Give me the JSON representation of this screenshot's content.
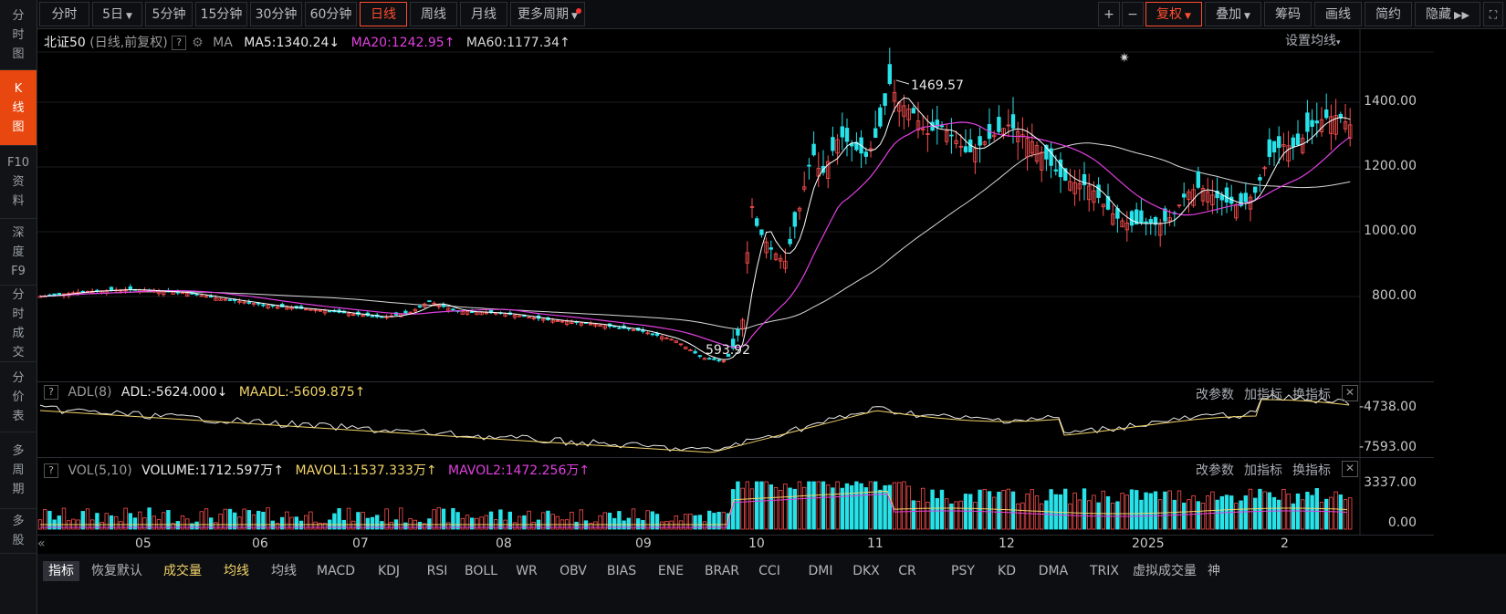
{
  "sidebar": {
    "items": [
      {
        "label": "分\n时\n图",
        "active": false
      },
      {
        "label": "K\n线\n图",
        "active": true
      },
      {
        "label": "F10\n资\n料",
        "active": false
      },
      {
        "label": "深\n度\nF9",
        "active": false
      },
      {
        "label": "分\n时\n成\n交",
        "active": false
      },
      {
        "label": "分\n价\n表",
        "active": false
      },
      {
        "label": "多\n周\n期",
        "active": false
      },
      {
        "label": "多\n股",
        "active": false
      }
    ]
  },
  "toolbar": {
    "periods": [
      "分时",
      "5日",
      "5分钟",
      "15分钟",
      "30分钟",
      "60分钟",
      "日线",
      "周线",
      "月线",
      "更多周期"
    ],
    "active_period": "日线",
    "right_buttons": [
      "+",
      "−",
      "复权",
      "叠加",
      "筹码",
      "画线",
      "简约",
      "隐藏"
    ],
    "collapse_icon": "double-chevron-right-icon",
    "fullscreen_icon": "fullscreen-icon"
  },
  "main_pane": {
    "security": "北证50",
    "mode": "(日线,前复权)",
    "ma_label": "MA",
    "ma5": "MA5:1340.24",
    "ma20": "MA20:1242.95",
    "ma60": "MA60:1177.34",
    "settings": "设置均线",
    "y_labels": [
      "1400.00",
      "1200.00",
      "1000.00",
      "800.00"
    ],
    "high_label": "1469.57",
    "low_label": "593.92",
    "colors": {
      "up": "#ff4f4f",
      "down": "#27e2e9",
      "ma5": "#ffffff",
      "ma20": "#e040e0",
      "ma60": "#d9d9d9"
    }
  },
  "adl_pane": {
    "name": "ADL(8)",
    "adl": "ADL:-5624.000",
    "maadl": "MAADL:-5609.875",
    "buttons": [
      "改参数",
      "加指标",
      "换指标"
    ],
    "y_labels": [
      "-4738.00",
      "-7593.00"
    ]
  },
  "vol_pane": {
    "name": "VOL(5,10)",
    "volume": "VOLUME:1712.597万",
    "mavol1": "MAVOL1:1537.333万",
    "mavol2": "MAVOL2:1472.256万",
    "buttons": [
      "改参数",
      "加指标",
      "换指标"
    ],
    "y_labels": [
      "3337.00",
      "0.00"
    ]
  },
  "x_axis": [
    "05",
    "06",
    "07",
    "08",
    "09",
    "10",
    "11",
    "12",
    "2025",
    "2"
  ],
  "bottom_tabs": [
    "指标",
    "恢复默认",
    "成交量",
    "均线",
    "均线",
    "MACD",
    "KDJ",
    "RSI",
    "BOLL",
    "WR",
    "OBV",
    "BIAS",
    "ENE",
    "BRAR",
    "CCI",
    "DMI",
    "DKX",
    "CR",
    "PSY",
    "KD",
    "DMA",
    "TRIX",
    "虚拟成交量",
    "神"
  ]
}
